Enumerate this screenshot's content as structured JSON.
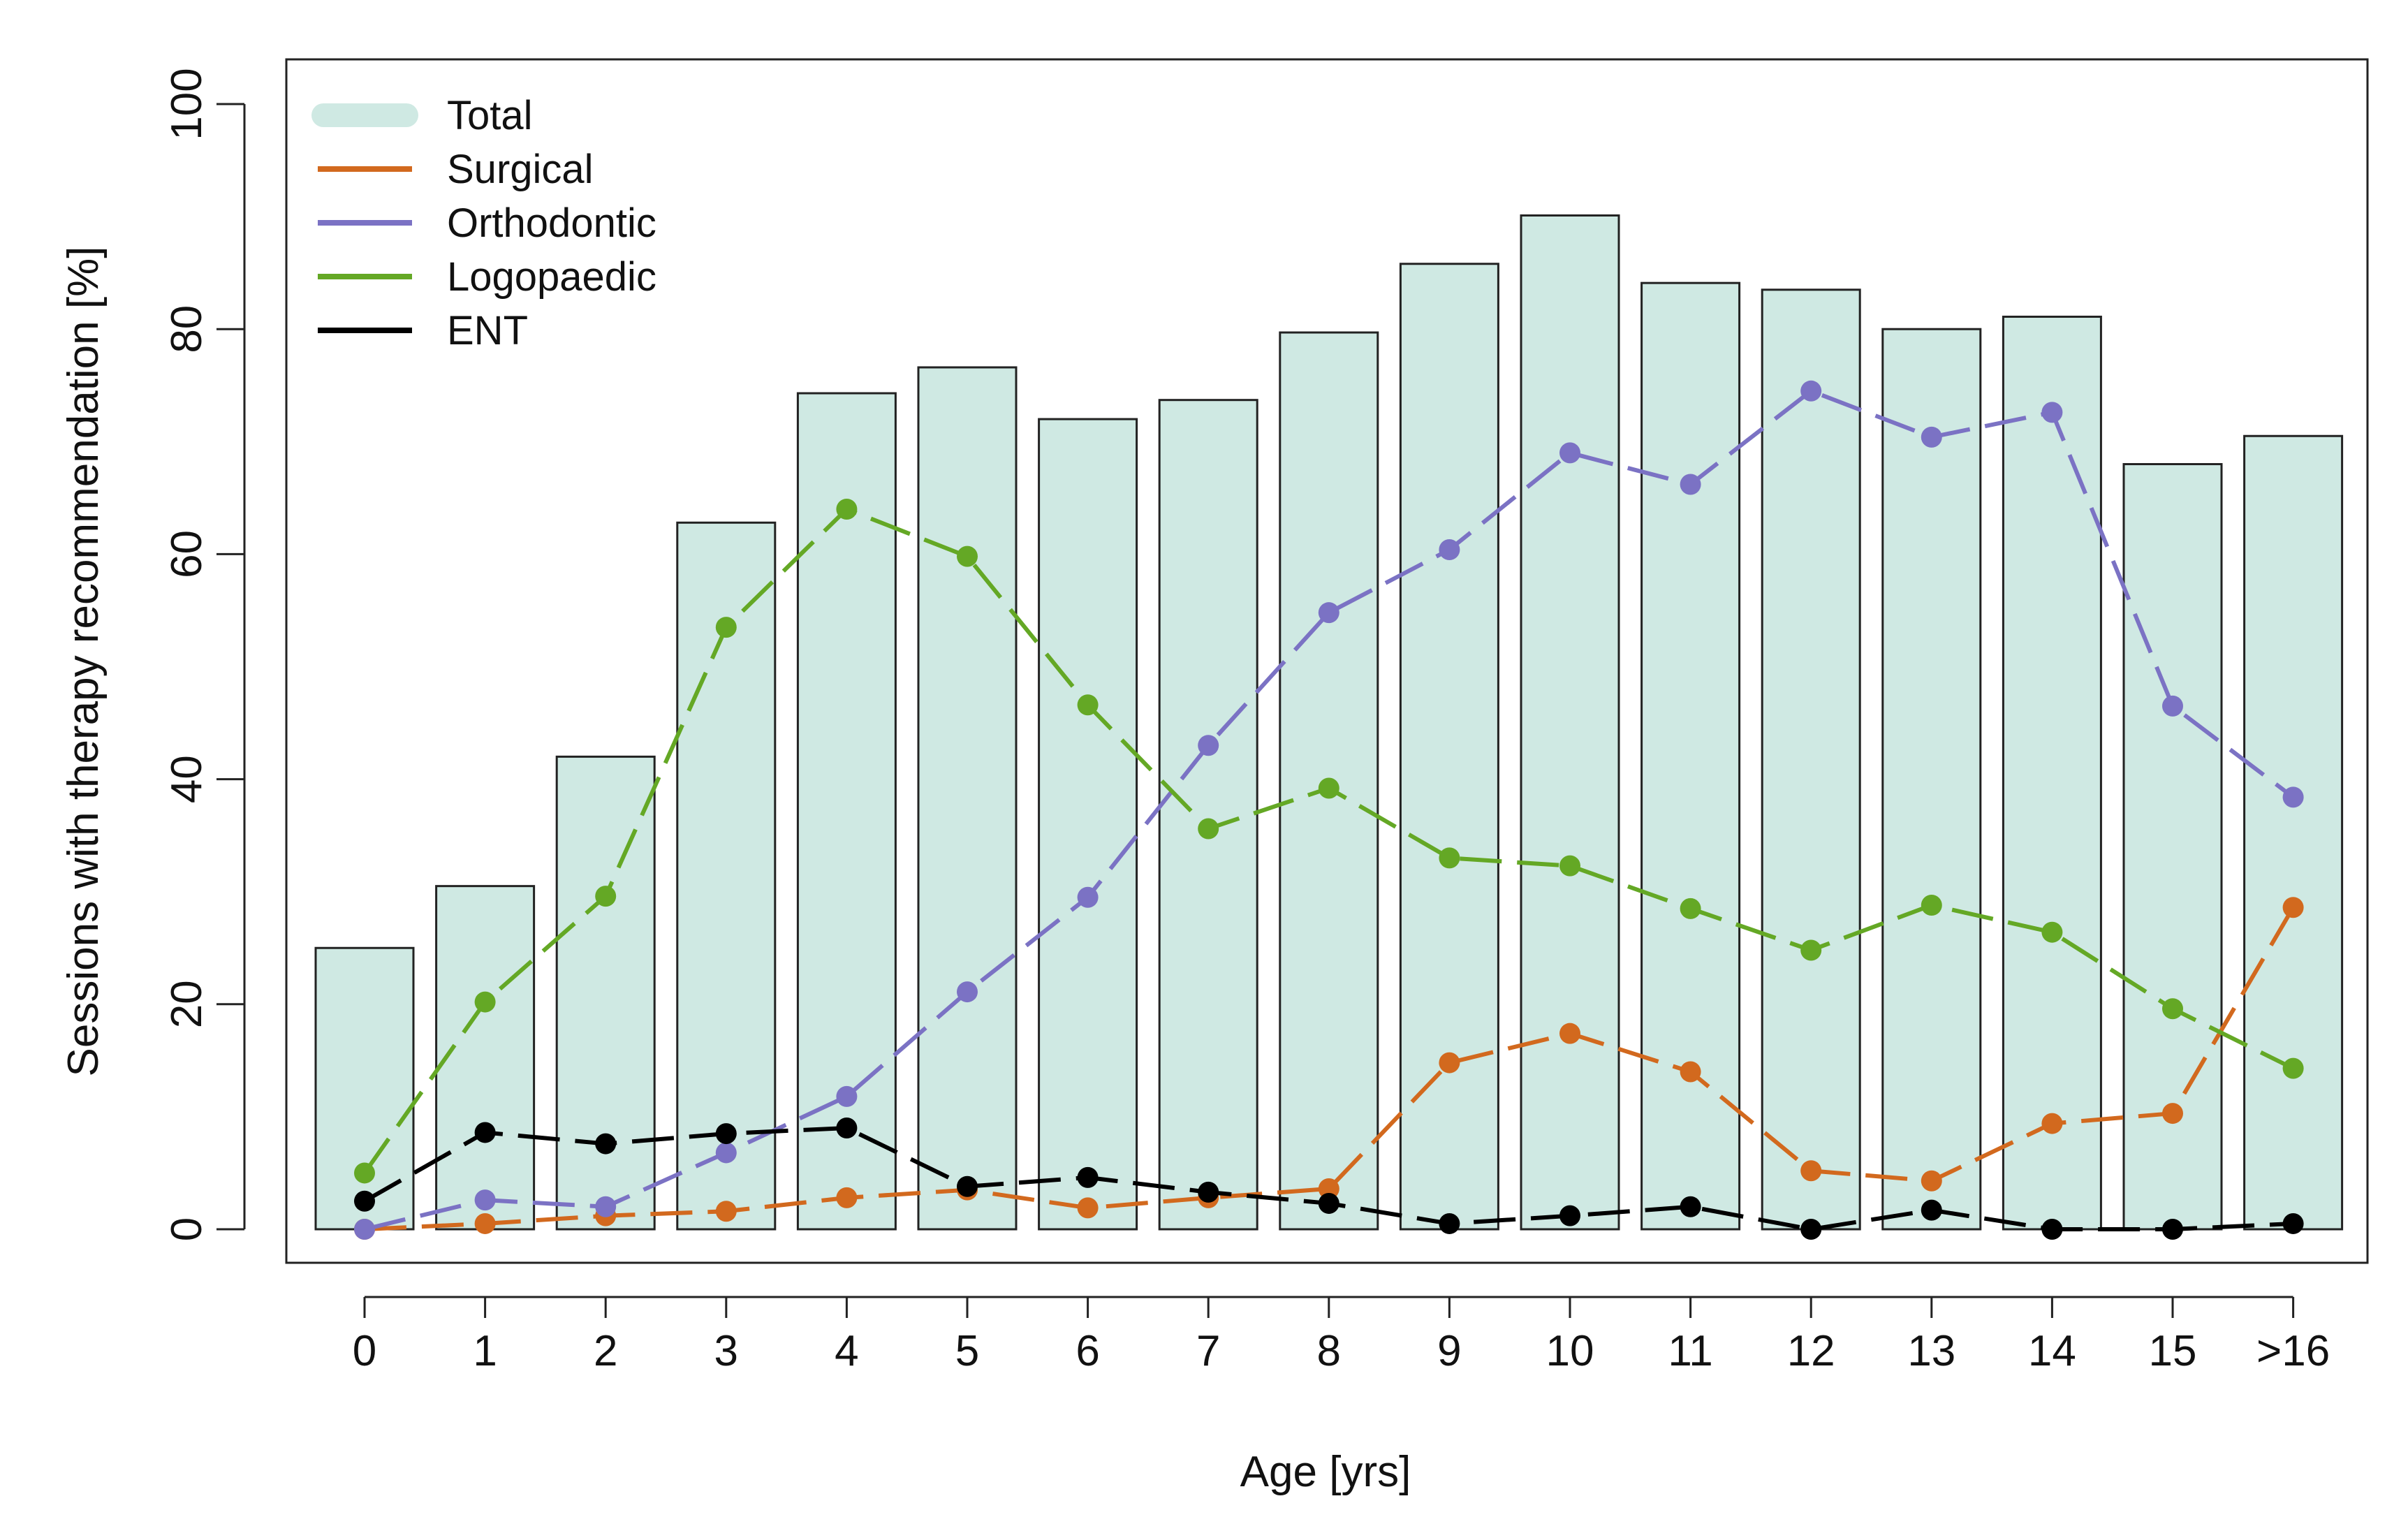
{
  "chart_data": {
    "type": "bar",
    "title": "",
    "xlabel": "Age [yrs]",
    "ylabel": "Sessions with therapy recommendation [%]",
    "ylim": [
      0,
      100
    ],
    "yticks": [
      0,
      20,
      40,
      60,
      80,
      100
    ],
    "categories": [
      "0",
      "1",
      "2",
      "3",
      "4",
      "5",
      "6",
      "7",
      "8",
      "9",
      "10",
      "11",
      "12",
      "13",
      "14",
      "15",
      ">16"
    ],
    "legend": [
      {
        "name": "Total",
        "color": "#cfe9e3"
      },
      {
        "name": "Surgical",
        "color": "#d2691e"
      },
      {
        "name": "Orthodontic",
        "color": "#7b72c4"
      },
      {
        "name": "Logopaedic",
        "color": "#64a825"
      },
      {
        "name": "ENT",
        "color": "#000000"
      }
    ],
    "bars": {
      "name": "Total",
      "color": "#cfe9e3",
      "values": [
        25,
        30.5,
        42,
        62.8,
        74.3,
        76.6,
        72,
        73.7,
        79.7,
        85.8,
        90.1,
        84.1,
        83.5,
        80,
        81.1,
        68,
        70.5
      ]
    },
    "series": [
      {
        "name": "Surgical",
        "color": "#d2691e",
        "values": [
          0,
          0.5,
          1.2,
          1.6,
          2.8,
          3.5,
          1.9,
          2.8,
          3.6,
          14.8,
          17.4,
          14,
          5.2,
          4.3,
          9.4,
          10.3,
          28.6
        ]
      },
      {
        "name": "Orthodontic",
        "color": "#7b72c4",
        "values": [
          0,
          2.6,
          2,
          6.8,
          11.8,
          21.1,
          29.5,
          43,
          54.8,
          60.4,
          69,
          66.2,
          74.5,
          70.4,
          72.6,
          46.5,
          38.4
        ]
      },
      {
        "name": "Logopaedic",
        "color": "#64a825",
        "values": [
          5,
          20.2,
          29.6,
          53.5,
          64,
          59.8,
          46.6,
          35.6,
          39.2,
          33,
          32.3,
          28.5,
          24.8,
          28.8,
          26.4,
          19.6,
          14.3
        ]
      },
      {
        "name": "ENT",
        "color": "#000000",
        "values": [
          2.5,
          8.6,
          7.6,
          8.5,
          9,
          3.8,
          4.6,
          3.3,
          2.3,
          0.5,
          1.2,
          2,
          0,
          1.7,
          0,
          0,
          0.5
        ]
      }
    ]
  }
}
